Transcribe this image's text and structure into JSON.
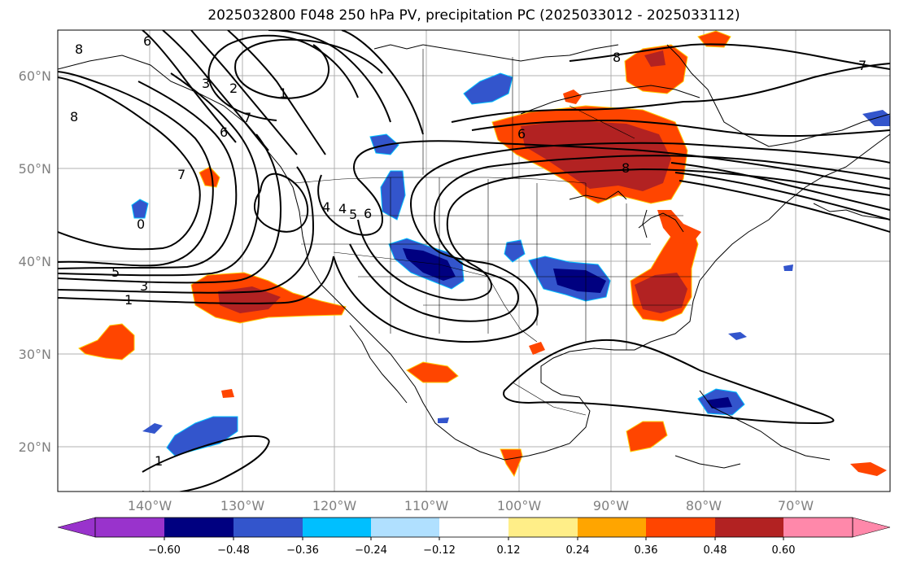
{
  "title": "2025032800 F048 250 hPa PV, precipitation PC (2025033012 - 2025033112)",
  "lat_labels": [
    "60°N",
    "50°N",
    "40°N",
    "30°N",
    "20°N"
  ],
  "lon_labels": [
    "140°W",
    "130°W",
    "120°W",
    "110°W",
    "100°W",
    "90°W",
    "80°W",
    "70°W"
  ],
  "colorbar": {
    "colors": [
      "#9933cc",
      "#000080",
      "#3355cc",
      "#00bfff",
      "#b0e0ff",
      "#ffffff",
      "#ffee88",
      "#ffa500",
      "#ff4500",
      "#b22222",
      "#ff88aa"
    ],
    "labels": [
      "−0.60",
      "−0.48",
      "−0.36",
      "−0.24",
      "−0.12",
      "0.12",
      "0.24",
      "0.36",
      "0.48",
      "0.60"
    ]
  },
  "contour_labels": [
    "8",
    "6",
    "3",
    "2",
    "1",
    "8",
    "7",
    "8",
    "6",
    "4",
    "7",
    "5",
    "3",
    "1",
    "4",
    "5",
    "6",
    "1",
    "8",
    "7",
    "6",
    "0"
  ],
  "map_features": {
    "fields": [
      "250 hPa PV contours",
      "precipitation PC shading"
    ],
    "projection": "PlateCarree"
  }
}
